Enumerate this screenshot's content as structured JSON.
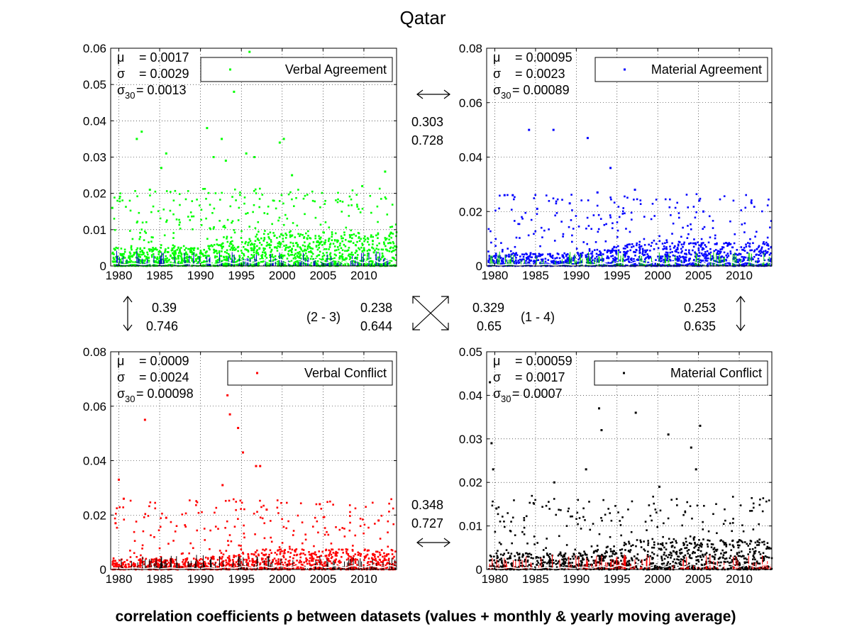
{
  "title": "Qatar",
  "caption": "correlation coefficients ρ between datasets (values + monthly & yearly moving average)",
  "stat_labels": {
    "mu": "μ",
    "sigma": "σ",
    "sigma30": "σ",
    "sigma30_sub": "30"
  },
  "chart_data": [
    {
      "type": "scatter",
      "panel": "top-left",
      "series": [
        {
          "name": "Verbal Agreement",
          "color": "#00ff00",
          "overlay_color": "#0000cc"
        }
      ],
      "stats": {
        "mu": "= 0.0017",
        "sigma": "= 0.0029",
        "sigma30": "= 0.0013"
      },
      "xlim": [
        1979.0,
        2014.0
      ],
      "ylim": [
        0,
        0.06
      ],
      "xticks": [
        "1980",
        "1985",
        "1990",
        "1995",
        "2000",
        "2005",
        "2010"
      ],
      "xtick_values": [
        1980,
        1985,
        1990,
        1995,
        2000,
        2005,
        2010
      ],
      "yticks": [
        "0",
        "0.01",
        "0.02",
        "0.03",
        "0.04",
        "0.05",
        "0.06"
      ],
      "ytick_values": [
        0,
        0.01,
        0.02,
        0.03,
        0.04,
        0.05,
        0.06
      ],
      "legend_position": "top-right",
      "dense_level": 0.0045,
      "spread": 0.003,
      "density": 1.0,
      "highlights": [
        [
          1979.2,
          0.016
        ],
        [
          1982.2,
          0.035
        ],
        [
          1982.8,
          0.037
        ],
        [
          1983.8,
          0.021
        ],
        [
          1985.2,
          0.027
        ],
        [
          1985.8,
          0.031
        ],
        [
          1990.8,
          0.038
        ],
        [
          1991.6,
          0.03
        ],
        [
          1992.6,
          0.035
        ],
        [
          1993.1,
          0.029
        ],
        [
          1994.1,
          0.048
        ],
        [
          1994.6,
          0.052
        ],
        [
          1995.6,
          0.031
        ],
        [
          1996.0,
          0.059
        ],
        [
          1996.6,
          0.03
        ],
        [
          1999.7,
          0.034
        ],
        [
          2000.2,
          0.035
        ],
        [
          2001.2,
          0.025
        ],
        [
          2009.8,
          0.022
        ],
        [
          2012.6,
          0.026
        ]
      ]
    },
    {
      "type": "scatter",
      "panel": "top-right",
      "series": [
        {
          "name": "Material Agreement",
          "color": "#0000ff",
          "overlay_color": "#00cc00"
        }
      ],
      "stats": {
        "mu": "= 0.00095",
        "sigma": "= 0.0023",
        "sigma30": "= 0.00089"
      },
      "xlim": [
        1979.0,
        2014.0
      ],
      "ylim": [
        0,
        0.08
      ],
      "xticks": [
        "1980",
        "1985",
        "1990",
        "1995",
        "2000",
        "2005",
        "2010"
      ],
      "xtick_values": [
        1980,
        1985,
        1990,
        1995,
        2000,
        2005,
        2010
      ],
      "yticks": [
        "0",
        "0.02",
        "0.04",
        "0.06",
        "0.08"
      ],
      "ytick_values": [
        0,
        0.02,
        0.04,
        0.06,
        0.08
      ],
      "legend_position": "top-right",
      "dense_level": 0.004,
      "spread": 0.003,
      "density": 0.8,
      "highlights": [
        [
          1981.2,
          0.026
        ],
        [
          1982.2,
          0.026
        ],
        [
          1984.2,
          0.05
        ],
        [
          1985.2,
          0.021
        ],
        [
          1987.2,
          0.05
        ],
        [
          1989.2,
          0.023
        ],
        [
          1991.4,
          0.047
        ],
        [
          1992.6,
          0.027
        ],
        [
          1994.2,
          0.036
        ],
        [
          1997.2,
          0.028
        ],
        [
          2005.1,
          0.024
        ],
        [
          2005.6,
          0.02
        ]
      ]
    },
    {
      "type": "scatter",
      "panel": "bottom-left",
      "series": [
        {
          "name": "Verbal Conflict",
          "color": "#ff0000",
          "overlay_color": "#000000"
        }
      ],
      "stats": {
        "mu": "= 0.0009",
        "sigma": "= 0.0024",
        "sigma30": "= 0.00098"
      },
      "xlim": [
        1979.0,
        2014.0
      ],
      "ylim": [
        0,
        0.08
      ],
      "xticks": [
        "1980",
        "1985",
        "1990",
        "1995",
        "2000",
        "2005",
        "2010"
      ],
      "xtick_values": [
        1980,
        1985,
        1990,
        1995,
        2000,
        2005,
        2010
      ],
      "yticks": [
        "0",
        "0.02",
        "0.04",
        "0.06",
        "0.08"
      ],
      "ytick_values": [
        0,
        0.02,
        0.04,
        0.06,
        0.08
      ],
      "legend_position": "top-right",
      "dense_level": 0.0035,
      "spread": 0.0025,
      "density": 0.75,
      "highlights": [
        [
          1979.6,
          0.017
        ],
        [
          1980.0,
          0.033
        ],
        [
          1980.6,
          0.026
        ],
        [
          1983.2,
          0.055
        ],
        [
          1985.8,
          0.019
        ],
        [
          1992.7,
          0.031
        ],
        [
          1993.3,
          0.064
        ],
        [
          1993.6,
          0.057
        ],
        [
          1994.6,
          0.052
        ],
        [
          1995.2,
          0.043
        ],
        [
          1996.8,
          0.038
        ],
        [
          1997.3,
          0.038
        ],
        [
          1998.1,
          0.022
        ],
        [
          2004.6,
          0.024
        ],
        [
          2011.8,
          0.018
        ]
      ]
    },
    {
      "type": "scatter",
      "panel": "bottom-right",
      "series": [
        {
          "name": "Material Conflict",
          "color": "#000000",
          "overlay_color": "#ff0000"
        }
      ],
      "stats": {
        "mu": "= 0.00059",
        "sigma": "= 0.0017",
        "sigma30": "= 0.0007"
      },
      "xlim": [
        1979.0,
        2014.0
      ],
      "ylim": [
        0,
        0.05
      ],
      "xticks": [
        "1980",
        "1985",
        "1990",
        "1995",
        "2000",
        "2005",
        "2010"
      ],
      "xtick_values": [
        1980,
        1985,
        1990,
        1995,
        2000,
        2005,
        2010
      ],
      "yticks": [
        "0",
        "0.01",
        "0.02",
        "0.03",
        "0.04",
        "0.05"
      ],
      "ytick_values": [
        0,
        0.01,
        0.02,
        0.03,
        0.04,
        0.05
      ],
      "legend_position": "top-right",
      "dense_level": 0.003,
      "spread": 0.0025,
      "density": 0.7,
      "highlights": [
        [
          1979.4,
          0.043
        ],
        [
          1979.6,
          0.029
        ],
        [
          1979.8,
          0.023
        ],
        [
          1980.2,
          0.014
        ],
        [
          1987.3,
          0.02
        ],
        [
          1991.2,
          0.023
        ],
        [
          1992.8,
          0.037
        ],
        [
          1993.1,
          0.032
        ],
        [
          1997.3,
          0.036
        ],
        [
          2000.2,
          0.019
        ],
        [
          2001.3,
          0.031
        ],
        [
          2004.1,
          0.028
        ],
        [
          2004.7,
          0.023
        ],
        [
          2005.2,
          0.033
        ]
      ]
    }
  ],
  "correlations": {
    "verbal_agreement__material_agreement": [
      "0.303",
      "0.728"
    ],
    "verbal_agreement__verbal_conflict": [
      "0.39",
      "0.746"
    ],
    "material_agreement__verbal_conflict": [
      "0.238",
      "0.644"
    ],
    "material_agreement__verbal_conflict_label": "(2 - 3)",
    "verbal_agreement__material_conflict": [
      "0.329",
      "0.65"
    ],
    "verbal_agreement__material_conflict_label": "(1 - 4)",
    "material_agreement__material_conflict": [
      "0.253",
      "0.635"
    ],
    "verbal_conflict__material_conflict": [
      "0.348",
      "0.727"
    ]
  }
}
